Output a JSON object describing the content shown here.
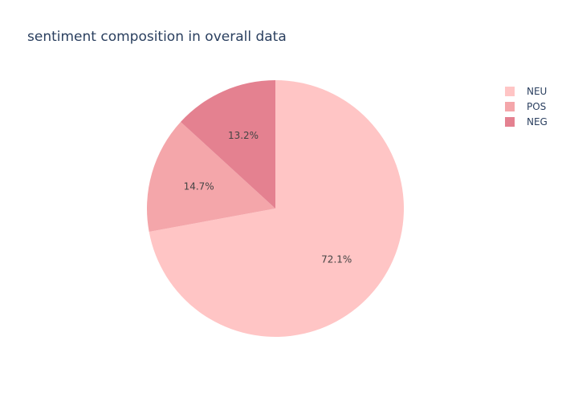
{
  "chart_data": {
    "type": "pie",
    "title": "sentiment composition in overall data",
    "slices": [
      {
        "label": "NEU",
        "value": 72.1,
        "display": "72.1%",
        "color": "#FFC5C5"
      },
      {
        "label": "POS",
        "value": 14.7,
        "display": "14.7%",
        "color": "#F4A6AA"
      },
      {
        "label": "NEG",
        "value": 13.2,
        "display": "13.2%",
        "color": "#E48190"
      }
    ],
    "direction": "clockwise",
    "start": "top",
    "legend": {
      "position": "top-right"
    }
  }
}
